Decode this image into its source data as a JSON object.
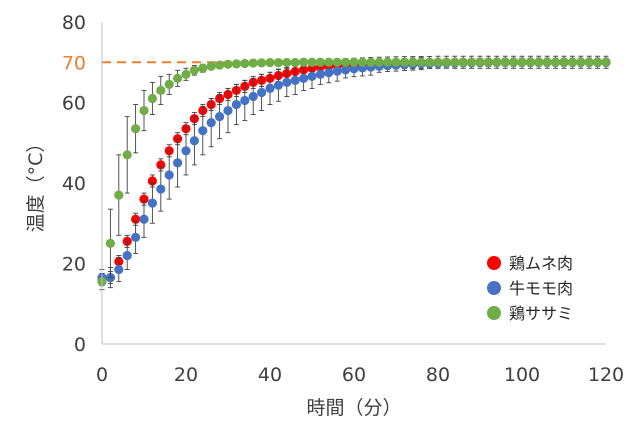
{
  "chart_data": {
    "type": "scatter",
    "title": "",
    "xlabel": "時間（分）",
    "ylabel": "温度（°C）",
    "xlim": [
      0,
      120
    ],
    "ylim": [
      0,
      80
    ],
    "xticks": [
      "0",
      "20",
      "40",
      "60",
      "80",
      "100",
      "120"
    ],
    "yticks": [
      "0",
      "20",
      "40",
      "60",
      "80"
    ],
    "grid": false,
    "legend_position": "bottom-right",
    "reference_line": {
      "y": 70,
      "label": "70",
      "color": "#ED7D31",
      "style": "dashed"
    },
    "error_bars": true,
    "series": [
      {
        "name": "鶏ムネ肉",
        "color": "#FF0000",
        "x": [
          0,
          2,
          4,
          6,
          8,
          10,
          12,
          14,
          16,
          18,
          20,
          22,
          24,
          26,
          28,
          30,
          32,
          34,
          36,
          38,
          40,
          42,
          44,
          46,
          48,
          50,
          52,
          54,
          56,
          58,
          60,
          62,
          64,
          66,
          68,
          70,
          72,
          74,
          76,
          78,
          80,
          82,
          84,
          86,
          88,
          90,
          92,
          94,
          96,
          98,
          100,
          102,
          104,
          106,
          108,
          110,
          112,
          114,
          116,
          118,
          120
        ],
        "y": [
          16,
          16.5,
          20.5,
          25.5,
          31,
          36,
          40.5,
          44.5,
          48,
          51,
          53.5,
          56,
          58,
          59.5,
          61,
          62,
          63,
          64,
          65,
          65.5,
          66,
          66.7,
          67.2,
          67.7,
          68.1,
          68.5,
          68.8,
          69,
          69.2,
          69.4,
          69.5,
          69.6,
          69.7,
          69.75,
          69.8,
          69.85,
          69.9,
          69.9,
          69.95,
          69.95,
          70,
          70,
          70,
          70,
          70,
          70,
          70,
          70,
          70,
          70,
          70,
          70,
          70,
          70,
          70,
          70,
          70,
          70,
          70,
          70,
          70
        ],
        "err": [
          1.5,
          1.5,
          1.5,
          1.5,
          1.5,
          1.5,
          1.5,
          1.5,
          1.5,
          1.5,
          1.5,
          1.5,
          1.5,
          1.5,
          1.5,
          1.5,
          1.5,
          1.5,
          1.5,
          1.5,
          1.5,
          1.5,
          1.5,
          1.5,
          1.5,
          1.5,
          1.5,
          1.5,
          1.5,
          1.5,
          1.5,
          1.5,
          1.5,
          1.5,
          1.5,
          1.5,
          1.5,
          1.5,
          1.5,
          1.5,
          1.5,
          1.5,
          1.5,
          1.5,
          1.5,
          1.5,
          1.5,
          1.5,
          1.5,
          1.5,
          1.5,
          1.5,
          1.5,
          1.5,
          1.5,
          1.5,
          1.5,
          1.5,
          1.5,
          1.5,
          1.5
        ]
      },
      {
        "name": "牛モモ肉",
        "color": "#4472C4",
        "x": [
          0,
          2,
          4,
          6,
          8,
          10,
          12,
          14,
          16,
          18,
          20,
          22,
          24,
          26,
          28,
          30,
          32,
          34,
          36,
          38,
          40,
          42,
          44,
          46,
          48,
          50,
          52,
          54,
          56,
          58,
          60,
          62,
          64,
          66,
          68,
          70,
          72,
          74,
          76,
          78,
          80,
          82,
          84,
          86,
          88,
          90,
          92,
          94,
          96,
          98,
          100,
          102,
          104,
          106,
          108,
          110,
          112,
          114,
          116,
          118,
          120
        ],
        "y": [
          16.5,
          16.5,
          18.5,
          22,
          26.5,
          31,
          35,
          38.5,
          42,
          45,
          48,
          50.5,
          53,
          55,
          56.5,
          58,
          59.5,
          60.5,
          61.5,
          62.5,
          63.5,
          64.3,
          65,
          65.5,
          66,
          66.5,
          67,
          67.4,
          67.8,
          68.1,
          68.4,
          68.6,
          68.8,
          69,
          69.2,
          69.3,
          69.45,
          69.55,
          69.65,
          69.7,
          69.75,
          69.8,
          69.85,
          69.9,
          69.9,
          69.95,
          69.95,
          70,
          70,
          70,
          70,
          70,
          70,
          70,
          70,
          70,
          70,
          70,
          70,
          70,
          70
        ],
        "err": [
          2,
          2.5,
          3,
          3.5,
          4,
          4.5,
          5,
          5.5,
          6,
          6,
          6,
          6,
          6,
          6,
          5.5,
          5.5,
          5,
          5,
          4.5,
          4.5,
          4,
          4,
          3.5,
          3.5,
          3,
          3,
          2.5,
          2.5,
          2.5,
          2,
          2,
          2,
          2,
          1.5,
          1.5,
          1.5,
          1.5,
          1.5,
          1.5,
          1,
          1,
          1,
          1,
          1,
          1,
          1,
          1,
          1,
          1,
          1,
          1,
          1,
          1,
          1,
          1,
          1,
          1,
          1,
          1,
          1,
          1
        ]
      },
      {
        "name": "鶏ササミ",
        "color": "#70AD47",
        "x": [
          0,
          2,
          4,
          6,
          8,
          10,
          12,
          14,
          16,
          18,
          20,
          22,
          24,
          26,
          28,
          30,
          32,
          34,
          36,
          38,
          40,
          42,
          44,
          46,
          48,
          50,
          52,
          54,
          56,
          58,
          60,
          62,
          64,
          66,
          68,
          70,
          72,
          74,
          76,
          78,
          80,
          82,
          84,
          86,
          88,
          90,
          92,
          94,
          96,
          98,
          100,
          102,
          104,
          106,
          108,
          110,
          112,
          114,
          116,
          118,
          120
        ],
        "y": [
          15.5,
          25,
          37,
          47,
          53.5,
          58,
          61,
          63,
          64.5,
          66,
          67,
          68,
          68.5,
          69,
          69.3,
          69.5,
          69.6,
          69.7,
          69.8,
          69.85,
          69.9,
          69.9,
          69.95,
          69.95,
          70,
          70,
          70,
          70,
          70,
          70,
          70,
          70,
          70,
          70,
          70,
          70,
          70,
          70,
          70,
          70,
          70,
          70,
          70,
          70,
          70,
          70,
          70,
          70,
          70,
          70,
          70,
          70,
          70,
          70,
          70,
          70,
          70,
          70,
          70,
          70,
          70
        ],
        "err": [
          2,
          8.5,
          10,
          9.5,
          6,
          5,
          4,
          3.5,
          2.5,
          2,
          1.5,
          1.2,
          1,
          0.8,
          0.6,
          0.5,
          0.4,
          0.4,
          0.3,
          0.3,
          0.3,
          0.3,
          0.3,
          0.3,
          0.3,
          0.3,
          0.3,
          0.3,
          0.3,
          0.3,
          0.3,
          0.3,
          0.3,
          0.3,
          0.3,
          0.3,
          0.3,
          0.3,
          0.3,
          0.3,
          0.3,
          0.3,
          0.3,
          0.3,
          0.3,
          0.3,
          0.3,
          0.3,
          0.3,
          0.3,
          0.3,
          0.3,
          0.3,
          0.3,
          0.3,
          0.3,
          0.3,
          0.3,
          0.3,
          0.3,
          0.3
        ]
      }
    ]
  }
}
